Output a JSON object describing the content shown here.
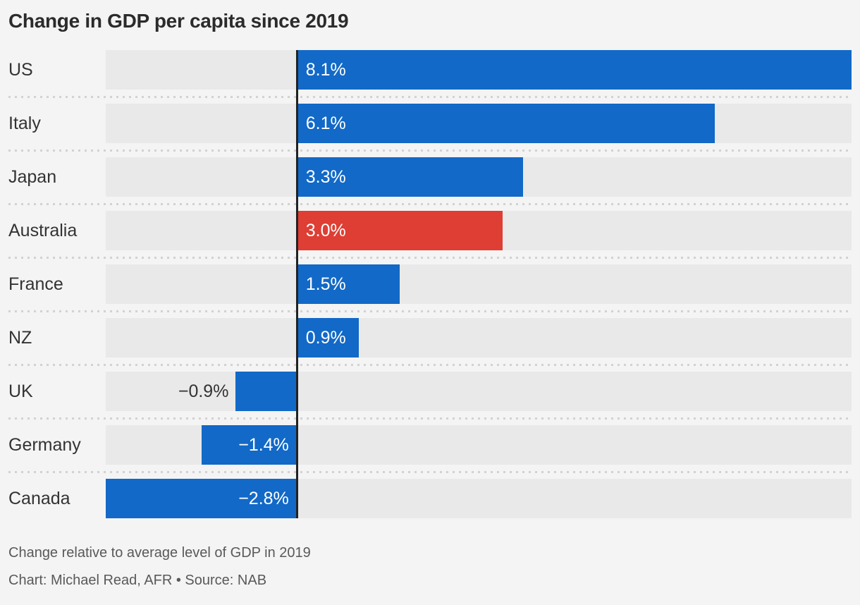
{
  "title": "Change in GDP per capita since 2019",
  "footer": {
    "note": "Change relative to average level of GDP in 2019",
    "credit": "Chart: Michael Read, AFR • Source: NAB"
  },
  "colors": {
    "bar": "#1269c7",
    "highlight": "#de3e33",
    "background": "#f4f4f4",
    "track": "#e9e9e9",
    "axis": "#222222",
    "separator": "#d2d2d2",
    "label_inside": "#ffffff",
    "label_outside": "#333333"
  },
  "chart_data": {
    "type": "bar",
    "orientation": "horizontal",
    "title": "Change in GDP per capita since 2019",
    "categories": [
      "US",
      "Italy",
      "Japan",
      "Australia",
      "France",
      "NZ",
      "UK",
      "Germany",
      "Canada"
    ],
    "values": [
      8.1,
      6.1,
      3.3,
      3.0,
      1.5,
      0.9,
      -0.9,
      -1.4,
      -2.8
    ],
    "labels": [
      "8.1%",
      "6.1%",
      "3.3%",
      "3.0%",
      "1.5%",
      "0.9%",
      "−0.9%",
      "−1.4%",
      "−2.8%"
    ],
    "unit": "%",
    "highlight_category": "Australia",
    "xlim": [
      -2.8,
      8.1
    ],
    "xlabel": "",
    "ylabel": "",
    "grid": "off",
    "legend": "none",
    "note": "Change relative to average level of GDP in 2019",
    "credit": "Chart: Michael Read, AFR • Source: NAB"
  }
}
